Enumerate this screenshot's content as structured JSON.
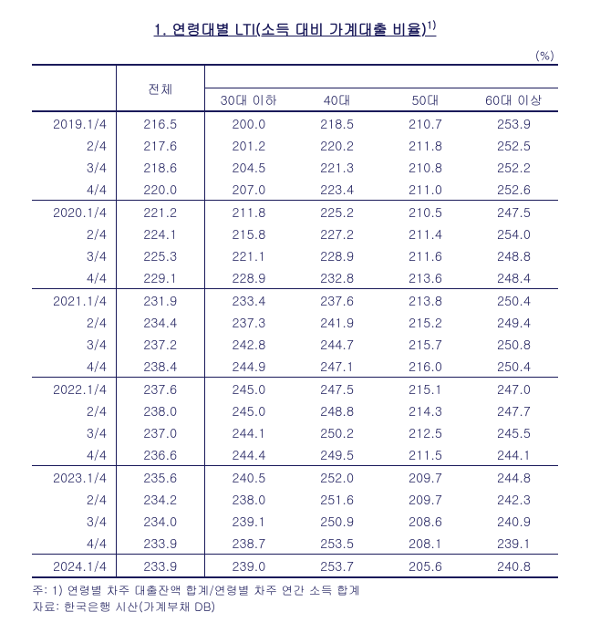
{
  "title_full": "1. 연령대별 LTI(소득 대비 가계대출 비율)",
  "title_sup": "1)",
  "unit": "(%)",
  "columns": [
    "전체",
    "30대 이하",
    "40대",
    "50대",
    "60대 이상"
  ],
  "groups": [
    {
      "rows": [
        {
          "label": "2019.1/4",
          "vals": [
            "216.5",
            "200.0",
            "218.5",
            "210.7",
            "253.9"
          ]
        },
        {
          "label": "2/4",
          "vals": [
            "217.6",
            "201.2",
            "220.2",
            "211.8",
            "252.5"
          ]
        },
        {
          "label": "3/4",
          "vals": [
            "218.6",
            "204.5",
            "221.3",
            "210.8",
            "252.2"
          ]
        },
        {
          "label": "4/4",
          "vals": [
            "220.0",
            "207.0",
            "223.4",
            "211.0",
            "252.6"
          ]
        }
      ]
    },
    {
      "rows": [
        {
          "label": "2020.1/4",
          "vals": [
            "221.2",
            "211.8",
            "225.2",
            "210.5",
            "247.5"
          ]
        },
        {
          "label": "2/4",
          "vals": [
            "224.1",
            "215.8",
            "227.2",
            "211.4",
            "254.0"
          ]
        },
        {
          "label": "3/4",
          "vals": [
            "225.3",
            "221.1",
            "228.9",
            "211.6",
            "248.8"
          ]
        },
        {
          "label": "4/4",
          "vals": [
            "229.1",
            "228.9",
            "232.8",
            "213.6",
            "248.4"
          ]
        }
      ]
    },
    {
      "rows": [
        {
          "label": "2021.1/4",
          "vals": [
            "231.9",
            "233.4",
            "237.6",
            "213.8",
            "250.4"
          ]
        },
        {
          "label": "2/4",
          "vals": [
            "234.4",
            "237.3",
            "241.9",
            "215.2",
            "249.4"
          ]
        },
        {
          "label": "3/4",
          "vals": [
            "237.2",
            "242.8",
            "244.7",
            "215.7",
            "250.8"
          ]
        },
        {
          "label": "4/4",
          "vals": [
            "238.4",
            "244.9",
            "247.1",
            "216.0",
            "250.4"
          ]
        }
      ]
    },
    {
      "rows": [
        {
          "label": "2022.1/4",
          "vals": [
            "237.6",
            "245.0",
            "247.5",
            "215.1",
            "247.0"
          ]
        },
        {
          "label": "2/4",
          "vals": [
            "238.0",
            "245.0",
            "248.8",
            "214.3",
            "247.7"
          ]
        },
        {
          "label": "3/4",
          "vals": [
            "237.0",
            "244.1",
            "250.2",
            "212.5",
            "245.5"
          ]
        },
        {
          "label": "4/4",
          "vals": [
            "236.6",
            "244.4",
            "249.5",
            "211.5",
            "244.1"
          ]
        }
      ]
    },
    {
      "rows": [
        {
          "label": "2023.1/4",
          "vals": [
            "235.6",
            "240.5",
            "252.0",
            "209.7",
            "244.8"
          ]
        },
        {
          "label": "2/4",
          "vals": [
            "234.2",
            "238.0",
            "251.6",
            "209.7",
            "242.3"
          ]
        },
        {
          "label": "3/4",
          "vals": [
            "234.0",
            "239.1",
            "250.9",
            "208.6",
            "240.9"
          ]
        },
        {
          "label": "4/4",
          "vals": [
            "233.9",
            "238.7",
            "253.5",
            "208.1",
            "239.1"
          ]
        }
      ]
    },
    {
      "rows": [
        {
          "label": "2024.1/4",
          "vals": [
            "233.9",
            "239.0",
            "253.7",
            "205.6",
            "240.8"
          ]
        }
      ]
    }
  ],
  "note1_label": "주: 1) ",
  "note1_text": "연령별 차주 대출잔액 합계/연령별 차주 연간 소득 합계",
  "note2_label": "자료: ",
  "note2_text": "한국은행 시산(가계부채 DB)"
}
